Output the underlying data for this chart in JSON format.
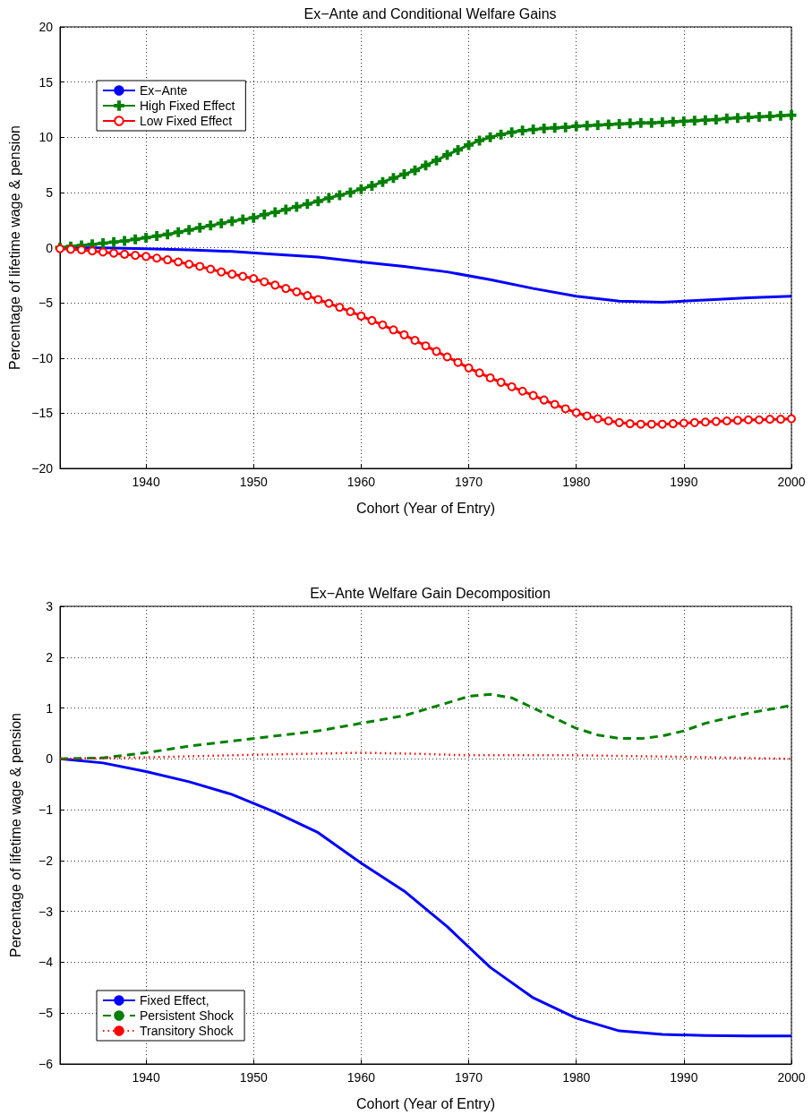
{
  "chart_data": [
    {
      "type": "line",
      "title": "Ex−Ante and Conditional Welfare Gains",
      "xlabel": "Cohort (Year of Entry)",
      "ylabel": "Percentage of lifetime wage & pension",
      "xlim": [
        1932,
        2000
      ],
      "xticks": [
        1940,
        1950,
        1960,
        1970,
        1980,
        1990,
        2000
      ],
      "ylim": [
        -20,
        20
      ],
      "yticks": [
        -20,
        -15,
        -10,
        -5,
        0,
        5,
        10,
        15,
        20
      ],
      "grid": true,
      "legend": "top left",
      "series": [
        {
          "name": "Ex−Ante",
          "color": "#0000ff",
          "marker": "none",
          "line_style": "solid",
          "x": [
            1932,
            1936,
            1940,
            1944,
            1948,
            1952,
            1956,
            1960,
            1964,
            1968,
            1972,
            1976,
            1980,
            1984,
            1988,
            1992,
            1996,
            2000
          ],
          "values": [
            0,
            -0.02,
            -0.1,
            -0.2,
            -0.35,
            -0.6,
            -0.85,
            -1.3,
            -1.7,
            -2.2,
            -2.9,
            -3.7,
            -4.4,
            -4.85,
            -4.95,
            -4.75,
            -4.55,
            -4.4
          ]
        },
        {
          "name": "High Fixed Effect",
          "color": "#008000",
          "marker": "cross",
          "line_style": "solid",
          "x": [
            1932,
            1933,
            1934,
            1935,
            1936,
            1937,
            1938,
            1939,
            1940,
            1941,
            1942,
            1943,
            1944,
            1945,
            1946,
            1947,
            1948,
            1949,
            1950,
            1951,
            1952,
            1953,
            1954,
            1955,
            1956,
            1957,
            1958,
            1959,
            1960,
            1961,
            1962,
            1963,
            1964,
            1965,
            1966,
            1967,
            1968,
            1969,
            1970,
            1971,
            1972,
            1973,
            1974,
            1975,
            1976,
            1977,
            1978,
            1979,
            1980,
            1981,
            1982,
            1983,
            1984,
            1985,
            1986,
            1987,
            1988,
            1989,
            1990,
            1991,
            1992,
            1993,
            1994,
            1995,
            1996,
            1997,
            1998,
            1999,
            2000
          ],
          "values": [
            0,
            0.1,
            0.2,
            0.3,
            0.4,
            0.5,
            0.6,
            0.75,
            0.9,
            1.05,
            1.2,
            1.4,
            1.6,
            1.8,
            2.0,
            2.2,
            2.4,
            2.55,
            2.7,
            3.0,
            3.2,
            3.45,
            3.7,
            3.95,
            4.2,
            4.5,
            4.75,
            5.0,
            5.3,
            5.6,
            5.95,
            6.3,
            6.65,
            7.0,
            7.45,
            7.9,
            8.4,
            8.85,
            9.3,
            9.7,
            10.0,
            10.25,
            10.45,
            10.6,
            10.7,
            10.8,
            10.85,
            10.9,
            11.0,
            11.05,
            11.1,
            11.15,
            11.2,
            11.25,
            11.3,
            11.3,
            11.35,
            11.4,
            11.45,
            11.5,
            11.55,
            11.6,
            11.7,
            11.75,
            11.8,
            11.85,
            11.9,
            11.95,
            12.0
          ]
        },
        {
          "name": "Low Fixed Effect",
          "color": "#ff0000",
          "marker": "circle",
          "line_style": "solid",
          "x": [
            1932,
            1933,
            1934,
            1935,
            1936,
            1937,
            1938,
            1939,
            1940,
            1941,
            1942,
            1943,
            1944,
            1945,
            1946,
            1947,
            1948,
            1949,
            1950,
            1951,
            1952,
            1953,
            1954,
            1955,
            1956,
            1957,
            1958,
            1959,
            1960,
            1961,
            1962,
            1963,
            1964,
            1965,
            1966,
            1967,
            1968,
            1969,
            1970,
            1971,
            1972,
            1973,
            1974,
            1975,
            1976,
            1977,
            1978,
            1979,
            1980,
            1981,
            1982,
            1983,
            1984,
            1985,
            1986,
            1987,
            1988,
            1989,
            1990,
            1991,
            1992,
            1993,
            1994,
            1995,
            1996,
            1997,
            1998,
            1999,
            2000
          ],
          "values": [
            -0.1,
            -0.15,
            -0.2,
            -0.3,
            -0.4,
            -0.5,
            -0.6,
            -0.7,
            -0.8,
            -0.95,
            -1.1,
            -1.3,
            -1.5,
            -1.7,
            -1.95,
            -2.2,
            -2.4,
            -2.6,
            -2.8,
            -3.1,
            -3.4,
            -3.7,
            -4.0,
            -4.35,
            -4.7,
            -5.05,
            -5.4,
            -5.8,
            -6.2,
            -6.6,
            -7.0,
            -7.45,
            -7.9,
            -8.4,
            -8.9,
            -9.4,
            -9.9,
            -10.4,
            -10.9,
            -11.35,
            -11.8,
            -12.2,
            -12.6,
            -13.0,
            -13.4,
            -13.8,
            -14.2,
            -14.6,
            -14.95,
            -15.25,
            -15.5,
            -15.7,
            -15.85,
            -15.95,
            -16.0,
            -16.0,
            -16.0,
            -15.95,
            -15.9,
            -15.85,
            -15.8,
            -15.75,
            -15.7,
            -15.65,
            -15.6,
            -15.6,
            -15.55,
            -15.55,
            -15.5
          ]
        }
      ]
    },
    {
      "type": "line",
      "title": "Ex−Ante Welfare Gain Decomposition",
      "xlabel": "Cohort (Year of Entry)",
      "ylabel": "Percentage of lifetime wage & pension",
      "xlim": [
        1932,
        2000
      ],
      "xticks": [
        1940,
        1950,
        1960,
        1970,
        1980,
        1990,
        2000
      ],
      "ylim": [
        -6,
        3
      ],
      "yticks": [
        -6,
        -5,
        -4,
        -3,
        -2,
        -1,
        0,
        1,
        2,
        3
      ],
      "grid": true,
      "legend": "bottom left",
      "series": [
        {
          "name": "Fixed Effect,",
          "color": "#0000ff",
          "line_style": "solid",
          "x": [
            1932,
            1936,
            1940,
            1944,
            1948,
            1952,
            1956,
            1960,
            1964,
            1968,
            1972,
            1976,
            1980,
            1984,
            1988,
            1992,
            1996,
            2000
          ],
          "values": [
            0,
            -0.08,
            -0.25,
            -0.45,
            -0.7,
            -1.05,
            -1.45,
            -2.05,
            -2.6,
            -3.3,
            -4.1,
            -4.7,
            -5.1,
            -5.35,
            -5.42,
            -5.44,
            -5.45,
            -5.45
          ]
        },
        {
          "name": "Persistent Shock",
          "color": "#008000",
          "line_style": "dashed",
          "x": [
            1932,
            1936,
            1940,
            1944,
            1948,
            1952,
            1956,
            1960,
            1964,
            1968,
            1970,
            1972,
            1974,
            1976,
            1978,
            1980,
            1982,
            1984,
            1986,
            1988,
            1990,
            1992,
            1996,
            2000
          ],
          "values": [
            0,
            0.02,
            0.12,
            0.25,
            0.35,
            0.45,
            0.55,
            0.7,
            0.85,
            1.1,
            1.23,
            1.27,
            1.2,
            1.0,
            0.8,
            0.6,
            0.47,
            0.4,
            0.4,
            0.45,
            0.55,
            0.7,
            0.9,
            1.05
          ]
        },
        {
          "name": "Transitory Shock",
          "color": "#ff0000",
          "line_style": "dotted",
          "x": [
            1932,
            1940,
            1950,
            1960,
            1965,
            1970,
            1980,
            1990,
            2000
          ],
          "values": [
            0,
            0.03,
            0.08,
            0.12,
            0.1,
            0.07,
            0.07,
            0.04,
            0.0
          ]
        }
      ]
    }
  ]
}
